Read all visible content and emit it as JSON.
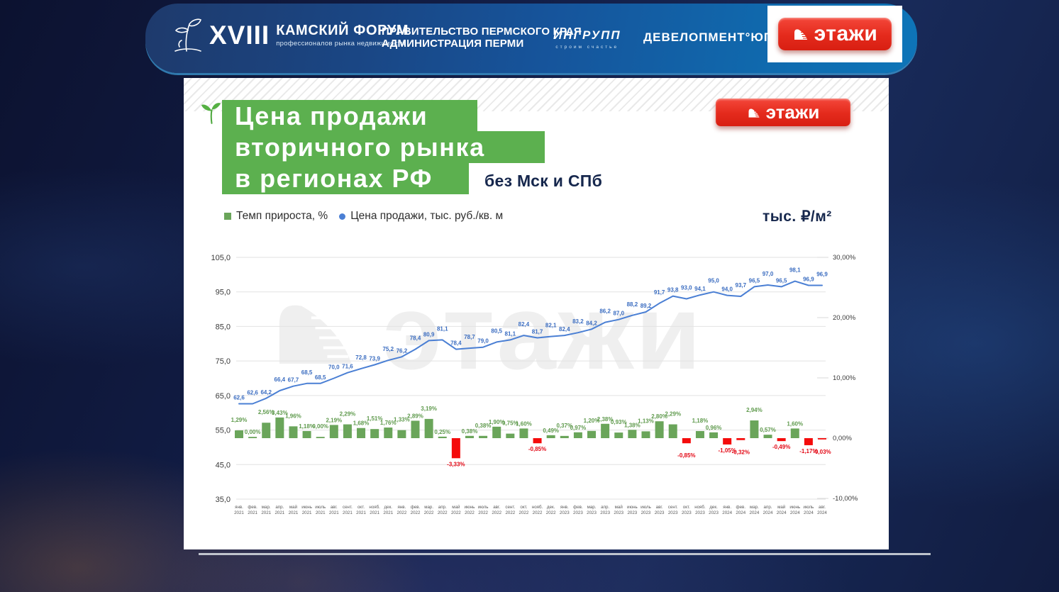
{
  "header": {
    "forum": {
      "numeral": "XVIII",
      "title": "КАМСКИЙ ФОРУМ",
      "subtitle": "профессионалов рынка недвижимости"
    },
    "government_line1": "ПРАВИТЕЛЬСТВО ПЕРМСКОГО КРАЯ",
    "government_line2": "АДМИНИСТРАЦИЯ ПЕРМИ",
    "ingroup": {
      "name": "ИНГРУПП",
      "tagline": "строим счастье"
    },
    "developer": "ДЕВЕЛОПМЕНТ°ЮГ",
    "etazhi_logo": "этажи"
  },
  "slide": {
    "title_lines": [
      "Цена продажи",
      "вторичного рынка",
      "в регионах РФ"
    ],
    "title_note": "без Мск и СПб",
    "brand_badge": "этажи",
    "unit_label": "тыс. ₽/м²",
    "watermark": "этажи",
    "legend": [
      {
        "label": "Темп прироста, %",
        "marker": "square",
        "color": "#6aa55a"
      },
      {
        "label": "Цена продажи, тыс. руб./кв. м",
        "marker": "circle",
        "color": "#4a7fd4"
      }
    ],
    "colors": {
      "title_green": "#5cb04f",
      "navy_text": "#16274d",
      "badge_red": "#e42a1c"
    }
  },
  "chart_data": {
    "type": "combo bar+line",
    "title": "Цена продажи вторичного рынка в регионах РФ (без Мск и СПб)",
    "categories": [
      "янв. 2021",
      "фев. 2021",
      "мар. 2021",
      "апр. 2021",
      "май 2021",
      "июнь 2021",
      "июль 2021",
      "авг. 2021",
      "сент. 2021",
      "окт. 2021",
      "нояб. 2021",
      "дек. 2021",
      "янв. 2022",
      "фев. 2022",
      "мар. 2022",
      "апр. 2022",
      "май 2022",
      "июнь 2022",
      "июль 2022",
      "авг. 2022",
      "сент. 2022",
      "окт. 2022",
      "нояб. 2022",
      "дек. 2022",
      "янв. 2023",
      "фев. 2023",
      "мар. 2023",
      "апр. 2023",
      "май 2023",
      "июнь 2023",
      "июль 2023",
      "авг. 2023",
      "сент. 2023",
      "окт. 2023",
      "нояб. 2023",
      "дек. 2023",
      "янв. 2024",
      "фев. 2024",
      "мар. 2024",
      "апр. 2024",
      "май 2024",
      "июнь 2024",
      "июль 2024",
      "авг. 2024"
    ],
    "series": [
      {
        "name": "Темп прироста, %",
        "type": "bar",
        "axis": "right",
        "color_positive": "#6aa55a",
        "color_negative": "#f40b0b",
        "values": [
          1.29,
          0.0,
          2.56,
          3.43,
          1.96,
          1.18,
          0.0,
          2.19,
          2.29,
          1.68,
          1.51,
          1.76,
          1.33,
          2.89,
          3.19,
          0.25,
          -3.33,
          0.38,
          0.38,
          1.9,
          0.75,
          1.6,
          -0.85,
          0.49,
          0.37,
          0.97,
          1.2,
          2.38,
          0.93,
          1.38,
          1.13,
          2.8,
          2.29,
          -0.85,
          1.18,
          0.96,
          -1.05,
          -0.32,
          2.94,
          0.57,
          -0.49,
          1.6,
          -1.17,
          -0.03
        ]
      },
      {
        "name": "Цена продажи, тыс. руб./кв. м",
        "type": "line",
        "axis": "left",
        "color": "#4a7fd4",
        "label_color": "#3a6cc0",
        "values": [
          62.6,
          62.6,
          64.2,
          66.4,
          67.7,
          68.5,
          68.5,
          70.0,
          71.6,
          72.8,
          73.9,
          75.2,
          76.2,
          78.4,
          80.9,
          81.1,
          78.4,
          78.7,
          79.0,
          80.5,
          81.1,
          82.4,
          81.7,
          82.1,
          82.4,
          83.2,
          84.2,
          86.2,
          87.0,
          88.2,
          89.2,
          91.7,
          93.8,
          93.0,
          94.1,
          95.0,
          94.0,
          93.7,
          96.5,
          97.0,
          96.5,
          98.1,
          96.9,
          96.9
        ]
      }
    ],
    "left_axis": {
      "ticks": [
        "105,0",
        "95,0",
        "85,0",
        "75,0",
        "65,0",
        "55,0",
        "45,0",
        "35,0"
      ],
      "min": 35,
      "max": 105
    },
    "right_axis": {
      "ticks": [
        "30,00%",
        "20,00%",
        "10,00%",
        "0,00%",
        "-10,00%"
      ],
      "min": -10,
      "max": 30
    },
    "grid": true,
    "legend_position": "top-left"
  }
}
